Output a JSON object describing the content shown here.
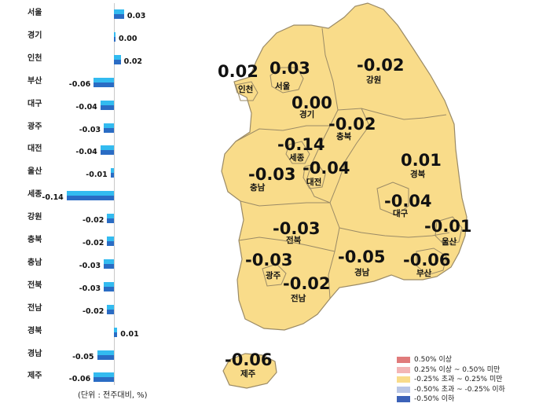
{
  "chart": {
    "unit_note": "(단위 : 전주대비, %)",
    "chart_data": {
      "type": "bar",
      "orientation": "horizontal",
      "categories": [
        "서울",
        "경기",
        "인천",
        "부산",
        "대구",
        "광주",
        "대전",
        "울산",
        "세종",
        "강원",
        "충북",
        "충남",
        "전북",
        "전남",
        "경북",
        "경남",
        "제주"
      ],
      "series": [
        {
          "values": [
            0.03,
            0.0,
            0.02,
            -0.06,
            -0.04,
            -0.03,
            -0.04,
            -0.01,
            -0.14,
            -0.02,
            -0.02,
            -0.03,
            -0.03,
            -0.02,
            0.01,
            -0.05,
            -0.06
          ]
        },
        {
          "values": [
            0.03,
            0.0,
            0.02,
            -0.06,
            -0.04,
            -0.03,
            -0.04,
            -0.01,
            -0.14,
            -0.02,
            -0.02,
            -0.03,
            -0.03,
            -0.02,
            0.01,
            -0.05,
            -0.06
          ]
        }
      ],
      "value_labels": [
        "0.03",
        "0.00",
        "0.02",
        "-0.06",
        "-0.04",
        "-0.03",
        "-0.04",
        "-0.01",
        "-0.14",
        "-0.02",
        "-0.02",
        "-0.03",
        "-0.03",
        "-0.02",
        "0.01",
        "-0.05",
        "-0.06"
      ],
      "colors": {
        "prev": "#33bbf0",
        "curr": "#2a6cc4"
      }
    }
  },
  "map": {
    "fill": "#f9dc8a",
    "stroke": "#9a8a66",
    "regions": [
      {
        "name": "인천",
        "value": "0.02"
      },
      {
        "name": "서울",
        "value": "0.03"
      },
      {
        "name": "강원",
        "value": "-0.02"
      },
      {
        "name": "경기",
        "value": "0.00"
      },
      {
        "name": "충북",
        "value": "-0.02"
      },
      {
        "name": "세종",
        "value": "-0.14"
      },
      {
        "name": "충남",
        "value": "-0.03"
      },
      {
        "name": "대전",
        "value": "-0.04"
      },
      {
        "name": "경북",
        "value": "0.01"
      },
      {
        "name": "대구",
        "value": "-0.04"
      },
      {
        "name": "울산",
        "value": "-0.01"
      },
      {
        "name": "전북",
        "value": "-0.03"
      },
      {
        "name": "광주",
        "value": "-0.03"
      },
      {
        "name": "경남",
        "value": "-0.05"
      },
      {
        "name": "부산",
        "value": "-0.06"
      },
      {
        "name": "전남",
        "value": "-0.02"
      },
      {
        "name": "제주",
        "value": "-0.06"
      }
    ]
  },
  "legend": {
    "items": [
      {
        "label": "0.50% 이상",
        "color": "#e07b7b"
      },
      {
        "label": "0.25% 이상 ~ 0.50% 미만",
        "color": "#f3b6b6"
      },
      {
        "label": "-0.25% 초과 ~ 0.25% 미만",
        "color": "#f9dc8a"
      },
      {
        "label": "-0.50% 초과 ~ -0.25% 이하",
        "color": "#b9c6e6"
      },
      {
        "label": "-0.50% 이하",
        "color": "#3c62b8"
      }
    ]
  }
}
